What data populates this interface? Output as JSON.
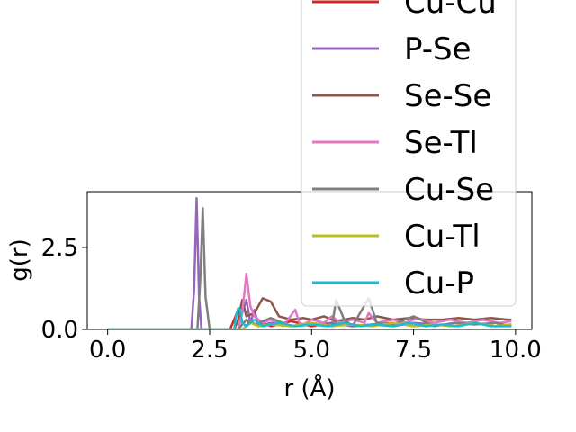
{
  "chart_data": {
    "type": "line",
    "xlabel": "r (Å)",
    "ylabel": "g(r)",
    "xlim": [
      -0.5,
      10.4
    ],
    "ylim": [
      0,
      4.2
    ],
    "x_ticks": [
      0.0,
      2.5,
      5.0,
      7.5,
      10.0
    ],
    "x_tick_labels": [
      "0.0",
      "2.5",
      "5.0",
      "7.5",
      "10.0"
    ],
    "y_ticks": [
      0.0,
      2.5
    ],
    "y_tick_labels": [
      "0.0",
      "2.5"
    ],
    "grid": false,
    "legend_position": "upper right (extends above the axes)",
    "series": [
      {
        "name": "Cu-Cu",
        "color": "#d62728",
        "x": [
          0,
          3.0,
          3.1,
          3.2,
          3.3,
          3.4,
          3.5,
          3.6,
          3.8,
          4.0,
          4.5,
          5.0,
          5.5,
          6.0,
          6.5,
          7.0,
          7.5,
          8.0,
          8.5,
          9.0,
          9.5,
          9.9
        ],
        "y": [
          0,
          0,
          0.3,
          0.6,
          0.2,
          0.1,
          0.3,
          0.15,
          0.2,
          0.1,
          0.25,
          0.1,
          0.2,
          0.1,
          0.15,
          0.2,
          0.1,
          0.15,
          0.1,
          0.2,
          0.1,
          0.15
        ]
      },
      {
        "name": "P-Se",
        "color": "#9467bd",
        "x": [
          0,
          2.05,
          2.12,
          2.18,
          2.24,
          2.3,
          3.2,
          3.3,
          3.4,
          3.5,
          3.6,
          3.7,
          4.0,
          4.5,
          5.0,
          5.5,
          6.0,
          6.5,
          7.0,
          7.5,
          8.0,
          8.5,
          9.0,
          9.5,
          9.9
        ],
        "y": [
          0,
          0,
          1.2,
          4.0,
          1.0,
          0,
          0,
          0.5,
          0.9,
          0.2,
          0.6,
          0.1,
          0.2,
          0.1,
          0.15,
          0.2,
          0.1,
          0.15,
          0.1,
          0.2,
          0.15,
          0.1,
          0.2,
          0.1,
          0.15
        ]
      },
      {
        "name": "Se-Se",
        "color": "#8c564b",
        "x": [
          0,
          3.1,
          3.2,
          3.3,
          3.4,
          3.6,
          3.8,
          3.9,
          4.0,
          4.2,
          4.5,
          4.8,
          5.0,
          5.3,
          5.6,
          6.0,
          6.3,
          6.6,
          7.0,
          7.4,
          7.8,
          8.2,
          8.6,
          9.0,
          9.4,
          9.8,
          9.9
        ],
        "y": [
          0,
          0,
          0.3,
          0.9,
          0.4,
          0.5,
          0.95,
          0.9,
          0.85,
          0.4,
          0.3,
          0.35,
          0.3,
          0.4,
          0.25,
          0.35,
          0.3,
          0.4,
          0.3,
          0.35,
          0.3,
          0.3,
          0.35,
          0.3,
          0.35,
          0.3,
          0.3
        ]
      },
      {
        "name": "Se-Tl",
        "color": "#e377c2",
        "x": [
          0,
          3.2,
          3.3,
          3.4,
          3.5,
          3.6,
          3.8,
          4.0,
          4.3,
          4.6,
          4.7,
          4.8,
          5.0,
          5.3,
          5.5,
          5.7,
          6.0,
          6.3,
          6.4,
          6.6,
          7.0,
          7.3,
          7.6,
          8.0,
          8.4,
          8.8,
          9.2,
          9.6,
          9.9
        ],
        "y": [
          0,
          0,
          0.5,
          1.7,
          0.7,
          0.4,
          0.2,
          0.3,
          0.1,
          0.6,
          0.2,
          0.15,
          0.3,
          0.2,
          0.4,
          0.2,
          0.3,
          0.2,
          0.5,
          0.2,
          0.3,
          0.2,
          0.35,
          0.2,
          0.3,
          0.2,
          0.3,
          0.2,
          0.25
        ]
      },
      {
        "name": "Cu-Se",
        "color": "#7f7f7f",
        "x": [
          0,
          2.2,
          2.27,
          2.33,
          2.4,
          2.5,
          3.2,
          3.4,
          3.6,
          4.0,
          4.5,
          5.0,
          5.5,
          5.6,
          5.8,
          6.0,
          6.4,
          6.6,
          7.0,
          7.5,
          8.0,
          8.5,
          9.0,
          9.5,
          9.9
        ],
        "y": [
          0,
          0,
          1.5,
          3.7,
          1.0,
          0,
          0,
          0.3,
          0.15,
          0.35,
          0.1,
          0.2,
          0.1,
          0.9,
          0.3,
          0.1,
          0.95,
          0.2,
          0.15,
          0.4,
          0.1,
          0.2,
          0.15,
          0.2,
          0.1
        ]
      },
      {
        "name": "Cu-Tl",
        "color": "#bcbd22",
        "x": [
          0,
          3.3,
          3.5,
          3.7,
          4.0,
          4.5,
          5.0,
          5.5,
          6.0,
          6.5,
          7.0,
          7.5,
          8.0,
          8.5,
          9.0,
          9.5,
          9.9
        ],
        "y": [
          0,
          0,
          0.2,
          0.1,
          0.15,
          0.1,
          0.2,
          0.1,
          0.15,
          0.1,
          0.2,
          0.1,
          0.15,
          0.1,
          0.2,
          0.1,
          0.15
        ]
      },
      {
        "name": "Cu-P",
        "color": "#17becf",
        "x": [
          0,
          3.1,
          3.15,
          3.2,
          3.25,
          3.3,
          3.4,
          3.6,
          3.8,
          4.2,
          4.6,
          5.0,
          5.4,
          5.8,
          6.2,
          6.6,
          7.0,
          7.4,
          7.8,
          8.2,
          8.6,
          9.0,
          9.4,
          9.9
        ],
        "y": [
          0,
          0,
          0.4,
          0.65,
          0.6,
          0.2,
          0.1,
          0.3,
          0.1,
          0.2,
          0.1,
          0.15,
          0.1,
          0.2,
          0.1,
          0.15,
          0.1,
          0.2,
          0.1,
          0.15,
          0.1,
          0.2,
          0.1,
          0.1
        ]
      }
    ]
  }
}
